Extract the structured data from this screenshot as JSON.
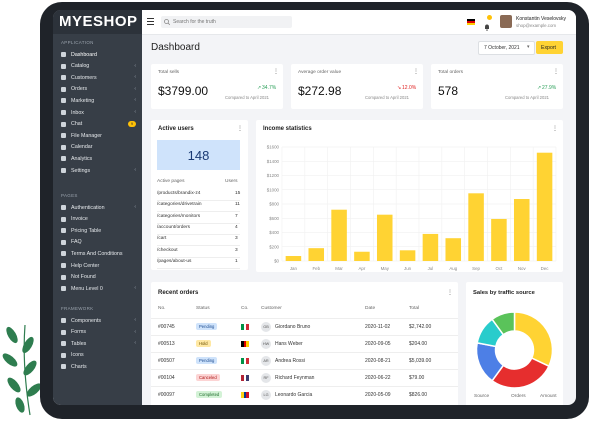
{
  "app": {
    "logo": "MYESHOP"
  },
  "sidebar": {
    "sections": [
      {
        "title": "APPLICATION",
        "items": [
          {
            "label": "Dashboard",
            "active": true,
            "chevron": false
          },
          {
            "label": "Catalog",
            "chevron": true
          },
          {
            "label": "Customers",
            "chevron": true
          },
          {
            "label": "Orders",
            "chevron": true
          },
          {
            "label": "Marketing",
            "chevron": true
          },
          {
            "label": "Inbox",
            "chevron": true
          },
          {
            "label": "Chat",
            "badge": "9"
          },
          {
            "label": "File Manager"
          },
          {
            "label": "Calendar"
          },
          {
            "label": "Analytics"
          },
          {
            "label": "Settings",
            "chevron": true
          }
        ]
      },
      {
        "title": "PAGES",
        "items": [
          {
            "label": "Authentication",
            "chevron": true
          },
          {
            "label": "Invoice"
          },
          {
            "label": "Pricing Table"
          },
          {
            "label": "FAQ"
          },
          {
            "label": "Terms And Conditions"
          },
          {
            "label": "Help Center"
          },
          {
            "label": "Not Found"
          },
          {
            "label": "Menu Level 0",
            "chevron": true
          }
        ]
      },
      {
        "title": "FRAMEWORK",
        "items": [
          {
            "label": "Components",
            "chevron": true
          },
          {
            "label": "Forms",
            "chevron": true
          },
          {
            "label": "Tables",
            "chevron": true
          },
          {
            "label": "Icons"
          },
          {
            "label": "Charts"
          }
        ]
      }
    ]
  },
  "header": {
    "search_placeholder": "Search for the truth",
    "notification_count": "5",
    "user_name": "Konstantin Veselovsky",
    "user_email": "shop@example.com"
  },
  "page": {
    "title": "Dashboard",
    "date": "7 October, 2021",
    "export_label": "Export"
  },
  "stats": [
    {
      "label": "Total sells",
      "value": "$3799.00",
      "change": "34.7%",
      "trend": "up",
      "note": "Compared to April 2021"
    },
    {
      "label": "Average order value",
      "value": "$272.98",
      "change": "12.0%",
      "trend": "down",
      "note": "Compared to April 2021"
    },
    {
      "label": "Total orders",
      "value": "578",
      "change": "27.9%",
      "trend": "up",
      "note": "Compared to April 2021"
    }
  ],
  "active_users": {
    "title": "Active users",
    "count": "148",
    "col_page": "Active pages",
    "col_users": "Users",
    "rows": [
      {
        "page": "/products/brandix-z4",
        "users": "15"
      },
      {
        "page": "/categories/drivetrain",
        "users": "11"
      },
      {
        "page": "/categories/monitors",
        "users": "7"
      },
      {
        "page": "/account/orders",
        "users": "4"
      },
      {
        "page": "/cart",
        "users": "3"
      },
      {
        "page": "/checkout",
        "users": "3"
      },
      {
        "page": "/pages/about-us",
        "users": "1"
      }
    ]
  },
  "income": {
    "title": "Income statistics"
  },
  "chart_data": {
    "type": "bar",
    "title": "Income statistics",
    "categories": [
      "Jan",
      "Feb",
      "Mar",
      "Apr",
      "May",
      "Jun",
      "Jul",
      "Aug",
      "Sep",
      "Oct",
      "Nov",
      "Dec"
    ],
    "values": [
      70,
      180,
      720,
      130,
      650,
      150,
      380,
      320,
      950,
      590,
      870,
      1520
    ],
    "ylim": [
      0,
      1600
    ],
    "yticks": [
      "$0",
      "$200",
      "$400",
      "$600",
      "$800",
      "$1000",
      "$1200",
      "$1400",
      "$1600"
    ],
    "color": "#ffd333"
  },
  "orders": {
    "title": "Recent orders",
    "columns": [
      "No.",
      "Status",
      "Co.",
      "Customer",
      "Date",
      "Total"
    ],
    "rows": [
      {
        "no": "#00745",
        "status": "Pending",
        "customer": "Giordano Bruno",
        "initials": "GB",
        "date": "2020-11-02",
        "total": "$2,742.00"
      },
      {
        "no": "#00513",
        "status": "Hold",
        "customer": "Hans Weber",
        "initials": "HW",
        "date": "2020-09-05",
        "total": "$204.00"
      },
      {
        "no": "#00507",
        "status": "Pending",
        "customer": "Andrea Rossi",
        "initials": "AR",
        "date": "2020-08-21",
        "total": "$5,039.00"
      },
      {
        "no": "#00104",
        "status": "Canceled",
        "customer": "Richard Feynman",
        "initials": "RF",
        "date": "2020-06-22",
        "total": "$79.00"
      },
      {
        "no": "#00097",
        "status": "Completed",
        "customer": "Leonardo Garcia",
        "initials": "LG",
        "date": "2020-05-09",
        "total": "$826.00"
      }
    ]
  },
  "traffic": {
    "title": "Sales by traffic source",
    "col_source": "Source",
    "col_orders": "Orders",
    "col_amount": "Amount",
    "slices": [
      {
        "value": 32,
        "color": "#ffd333"
      },
      {
        "value": 28,
        "color": "#e62e2e"
      },
      {
        "value": 18,
        "color": "#4d7fe6"
      },
      {
        "value": 12,
        "color": "#29cccc"
      },
      {
        "value": 10,
        "color": "#5ac35a"
      }
    ]
  }
}
